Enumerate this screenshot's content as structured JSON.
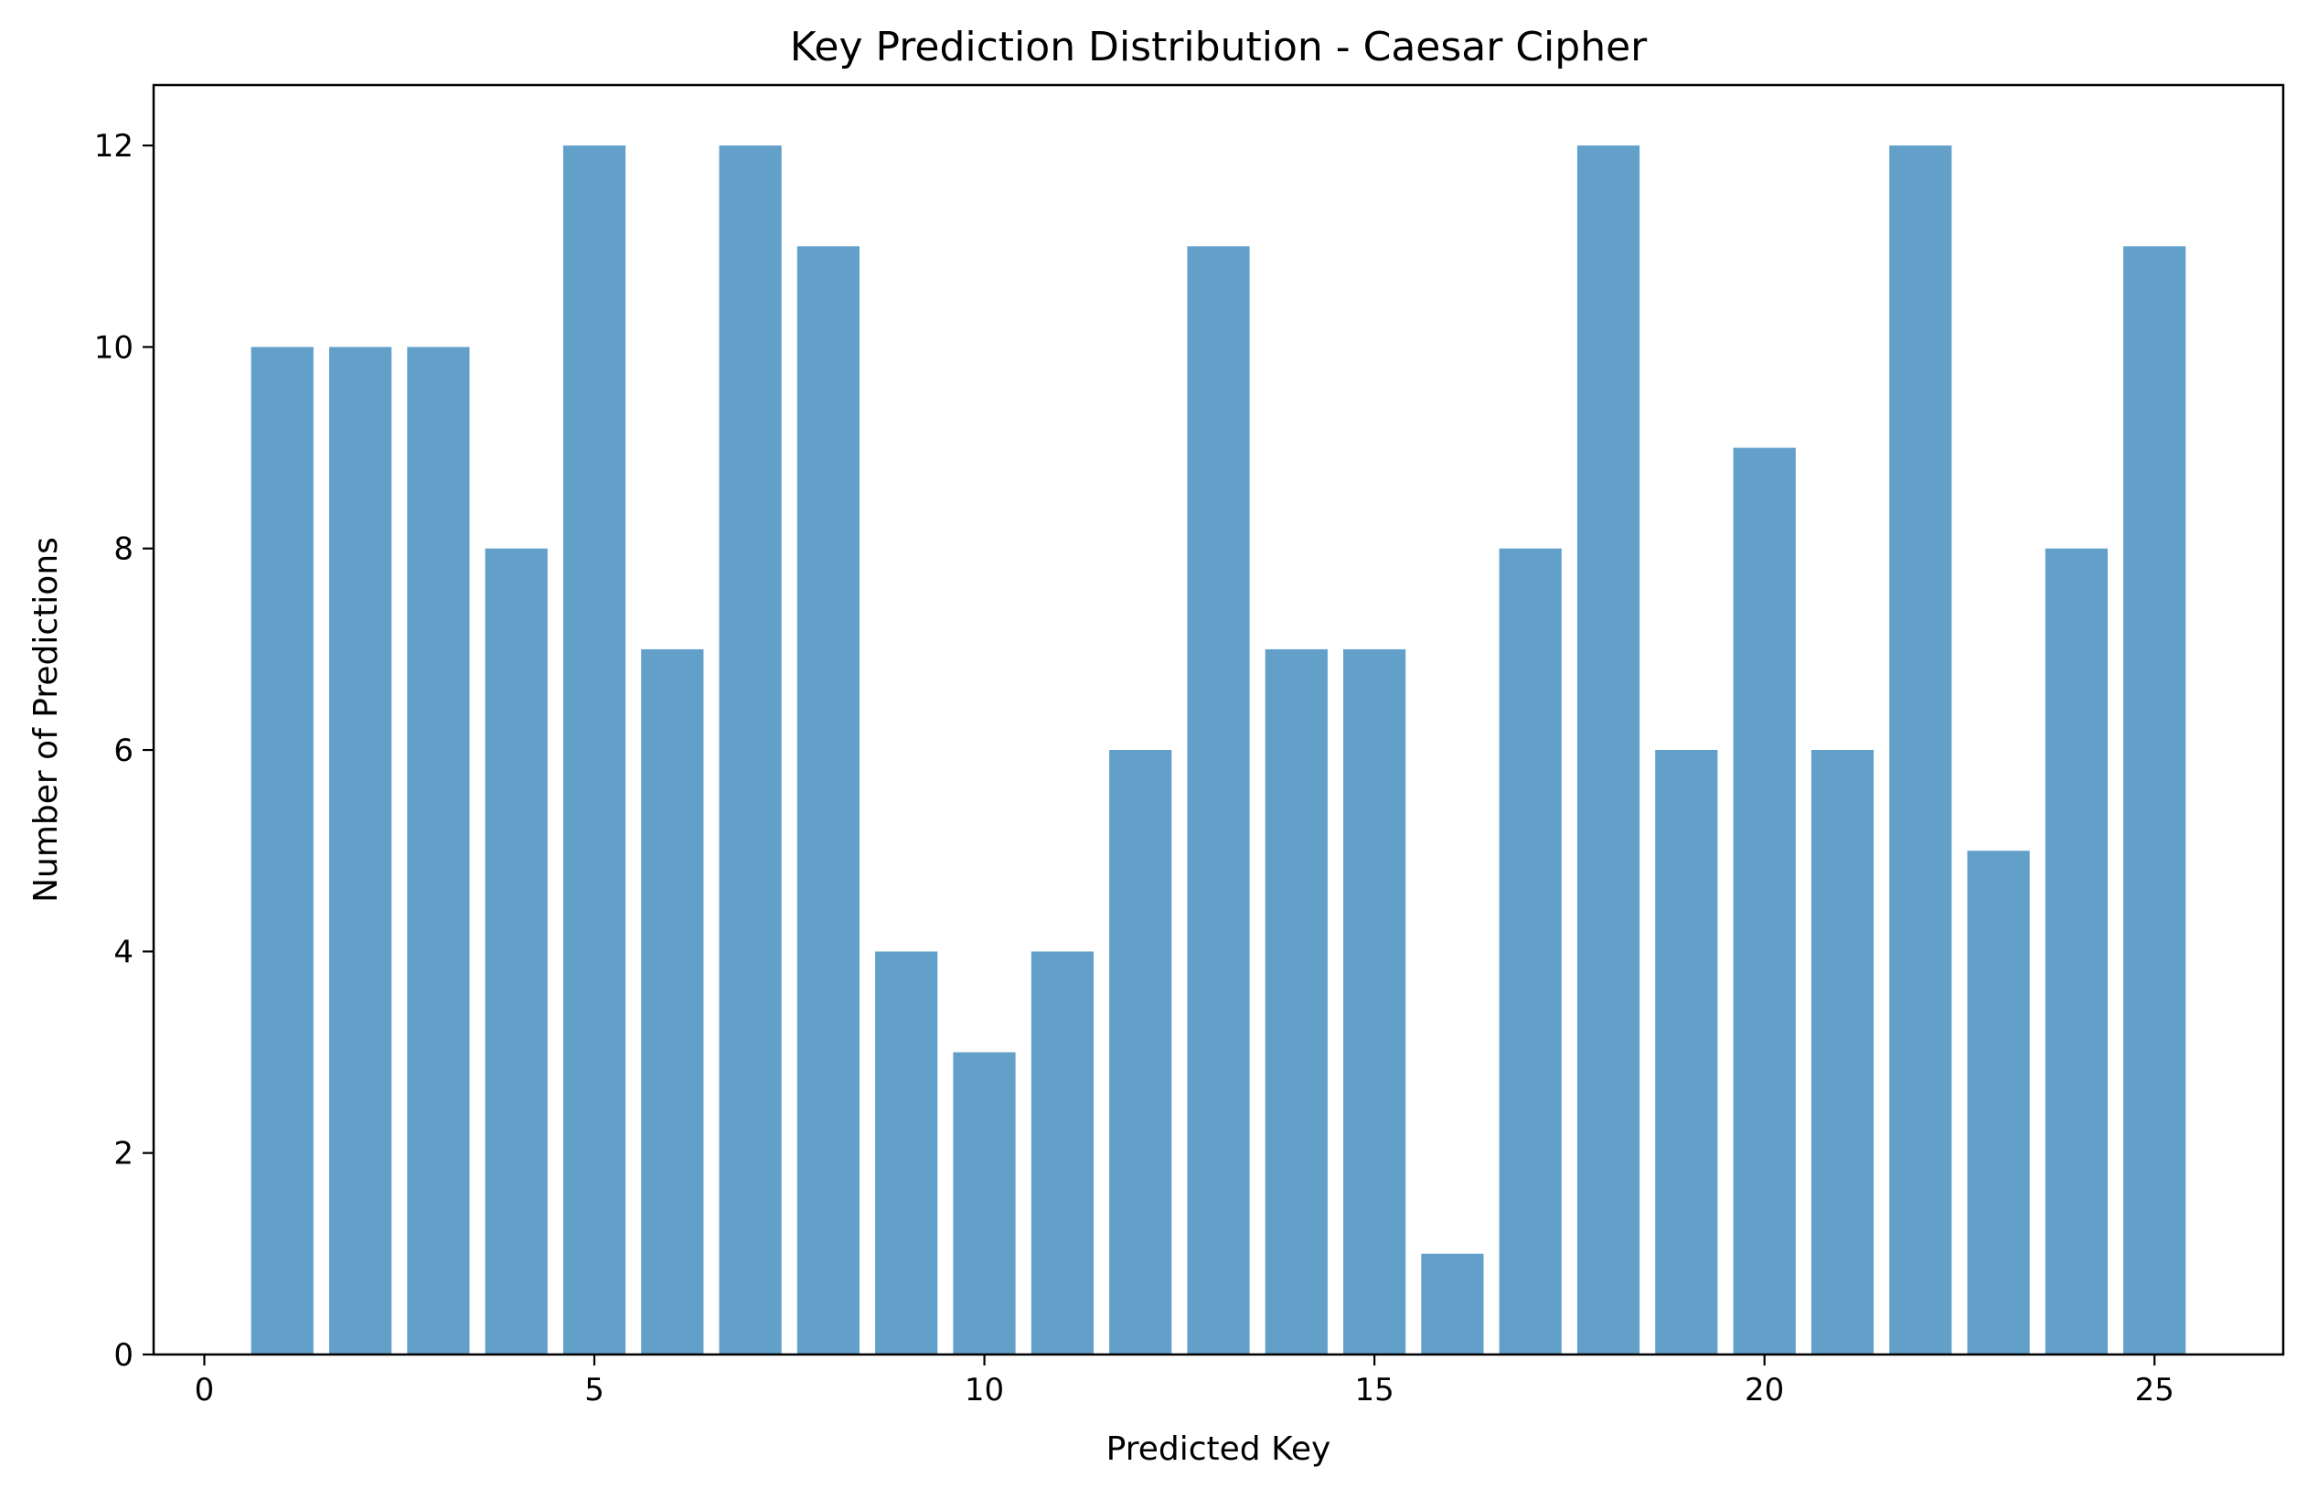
{
  "chart_data": {
    "type": "bar",
    "title": "Key Prediction Distribution - Caesar Cipher",
    "xlabel": "Predicted Key",
    "ylabel": "Number of Predictions",
    "categories": [
      1,
      2,
      3,
      4,
      5,
      6,
      7,
      8,
      9,
      10,
      11,
      12,
      13,
      14,
      15,
      16,
      17,
      18,
      19,
      20,
      21,
      22,
      23,
      24,
      25
    ],
    "values": [
      10,
      10,
      10,
      8,
      12,
      7,
      12,
      11,
      4,
      3,
      4,
      6,
      11,
      7,
      7,
      1,
      8,
      12,
      6,
      9,
      6,
      12,
      5,
      8,
      11
    ],
    "xlim": [
      -0.65,
      26.65
    ],
    "ylim": [
      0,
      12.6
    ],
    "xticks": [
      0,
      5,
      10,
      15,
      20,
      25
    ],
    "yticks": [
      0,
      2,
      4,
      6,
      8,
      10,
      12
    ],
    "bar_width": 0.8,
    "bar_color": "#1f77b4",
    "bar_opacity": 0.7,
    "grid": false,
    "legend": "none"
  }
}
